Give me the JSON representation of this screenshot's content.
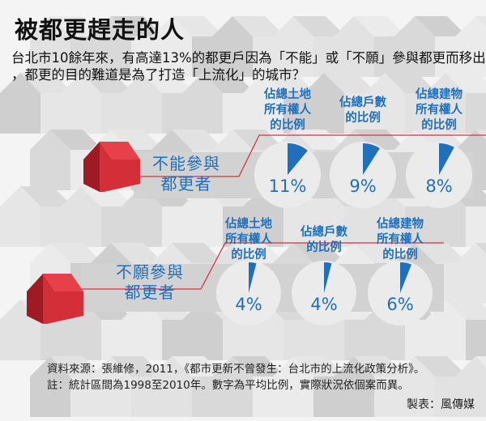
{
  "title": "被都更趕走的人",
  "subtitle_lines": [
    "台北市10餘年來，有高達13%的都更戶因為「不能」或「不願」參與都更而移出",
    "，都更的目的難道是為了打造「上流化」的城市？"
  ],
  "colors": {
    "accent_blue": "#1f6fbd",
    "accent_red": "#d8323e",
    "pie_bg": "#ebebeb",
    "band": "#d2d2d2"
  },
  "chart_data": [
    {
      "type": "pie",
      "group": [
        "不能參與",
        "都更者"
      ],
      "categories": [
        [
          "佔總土地",
          "所有權人",
          "的比例"
        ],
        [
          "佔總戶數",
          "的比例"
        ],
        [
          "佔總建物",
          "所有權人",
          "的比例"
        ]
      ],
      "values": [
        11,
        9,
        8
      ],
      "labels": [
        "11%",
        "9%",
        "8%"
      ]
    },
    {
      "type": "pie",
      "group": [
        "不願參與",
        "都更者"
      ],
      "categories": [
        [
          "佔總土地",
          "所有權人",
          "的比例"
        ],
        [
          "佔總戶數",
          "的比例"
        ],
        [
          "佔總建物",
          "所有權人",
          "的比例"
        ]
      ],
      "values": [
        4,
        4,
        6
      ],
      "labels": [
        "4%",
        "4%",
        "6%"
      ]
    }
  ],
  "footnotes": [
    "資料來源：張維修，2011，《都市更新不曾發生：台北市的上流化政策分析》。",
    "註：統計區間為1998至2010年。數字為平均比例，實際狀況依個案而異。"
  ],
  "credit": "製表：風傳媒"
}
